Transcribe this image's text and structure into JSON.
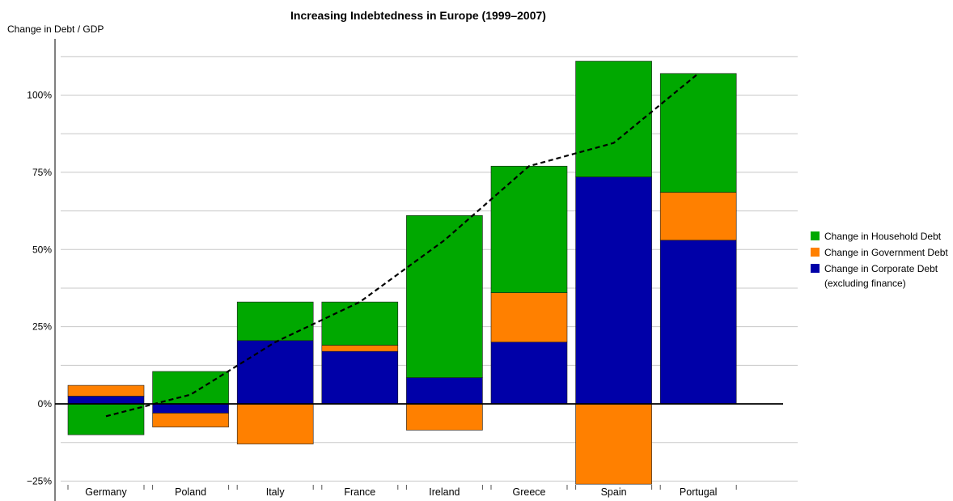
{
  "chart_data": {
    "type": "bar",
    "stacked": true,
    "title": "Increasing Indebtedness in Europe (1999–2007)",
    "ylabel": "Change in Debt / GDP",
    "xlabel": "",
    "ylim": [
      -27,
      120
    ],
    "yticks": [
      -25,
      0,
      25,
      50,
      75,
      100
    ],
    "ytick_labels": [
      "−25%",
      "0%",
      "25%",
      "50%",
      "75%",
      "100%"
    ],
    "grid": true,
    "legend_position": "right",
    "categories": [
      "Germany",
      "Poland",
      "Italy",
      "France",
      "Ireland",
      "Greece",
      "Spain",
      "Portugal"
    ],
    "series": [
      {
        "name": "Change in Household Debt",
        "color": "#00a800",
        "values": [
          -10,
          10.5,
          12.5,
          14,
          52.5,
          41,
          37.5,
          38.5
        ]
      },
      {
        "name": "Change in Government Debt",
        "color": "#ff8000",
        "values": [
          3.5,
          -4.5,
          -13,
          2,
          -8.5,
          16,
          -26,
          15.5
        ]
      },
      {
        "name": "Change in Corporate Debt",
        "name_line2": "(excluding finance)",
        "color": "#0000a8",
        "values": [
          2.5,
          -3,
          20.5,
          17,
          8.5,
          20,
          73.5,
          53
        ]
      }
    ],
    "total_line": {
      "style": "dashed",
      "color": "#000000",
      "values": [
        -4,
        3,
        20,
        33,
        53,
        77,
        84.5,
        107
      ]
    }
  }
}
